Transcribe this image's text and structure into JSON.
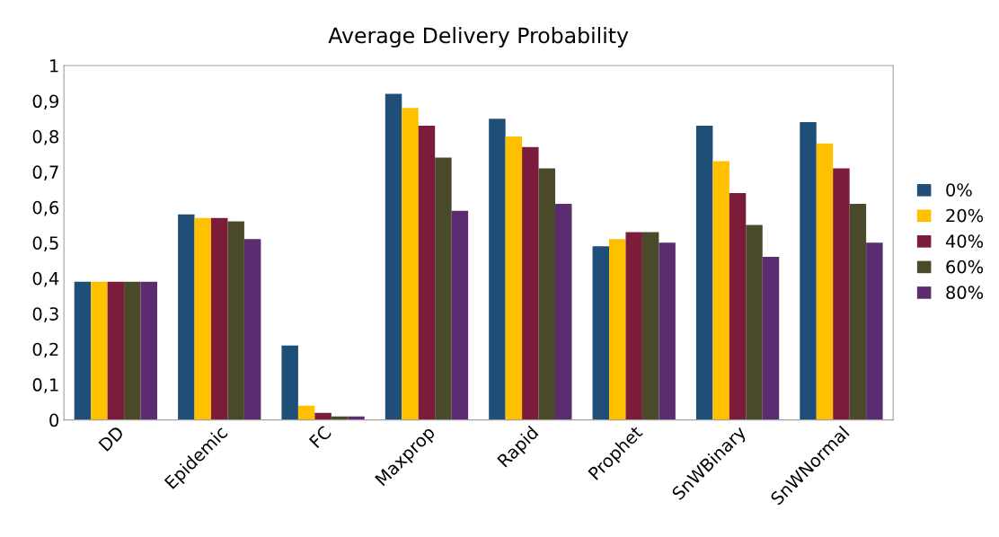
{
  "chart_data": {
    "type": "bar",
    "title": "Average Delivery Probability",
    "categories": [
      "DD",
      "Epidemic",
      "FC",
      "Maxprop",
      "Rapid",
      "Prophet",
      "SnWBinary",
      "SnWNormal"
    ],
    "series": [
      {
        "name": "0%",
        "color": "#1f4e79",
        "values": [
          0.39,
          0.58,
          0.21,
          0.92,
          0.85,
          0.49,
          0.83,
          0.84
        ]
      },
      {
        "name": "20%",
        "color": "#ffc000",
        "values": [
          0.39,
          0.57,
          0.04,
          0.88,
          0.8,
          0.51,
          0.73,
          0.78
        ]
      },
      {
        "name": "40%",
        "color": "#7b1c3a",
        "values": [
          0.39,
          0.57,
          0.02,
          0.83,
          0.77,
          0.53,
          0.64,
          0.71
        ]
      },
      {
        "name": "60%",
        "color": "#4a4a2a",
        "values": [
          0.39,
          0.56,
          0.01,
          0.74,
          0.71,
          0.53,
          0.55,
          0.61
        ]
      },
      {
        "name": "80%",
        "color": "#5b2c6f",
        "values": [
          0.39,
          0.51,
          0.01,
          0.59,
          0.61,
          0.5,
          0.46,
          0.5
        ]
      }
    ],
    "ylim": [
      0,
      1
    ],
    "yticks": [
      0,
      {
        "value": 0.1,
        "label": "0,1"
      },
      {
        "value": 0.2,
        "label": "0,2"
      },
      {
        "value": 0.3,
        "label": "0,3"
      },
      {
        "value": 0.4,
        "label": "0,4"
      },
      {
        "value": 0.5,
        "label": "0,5"
      },
      {
        "value": 0.6,
        "label": "0,6"
      },
      {
        "value": 0.7,
        "label": "0,7"
      },
      {
        "value": 0.8,
        "label": "0,8"
      },
      {
        "value": 0.9,
        "label": "0,9"
      },
      1
    ],
    "grid": false,
    "legend": "right"
  }
}
